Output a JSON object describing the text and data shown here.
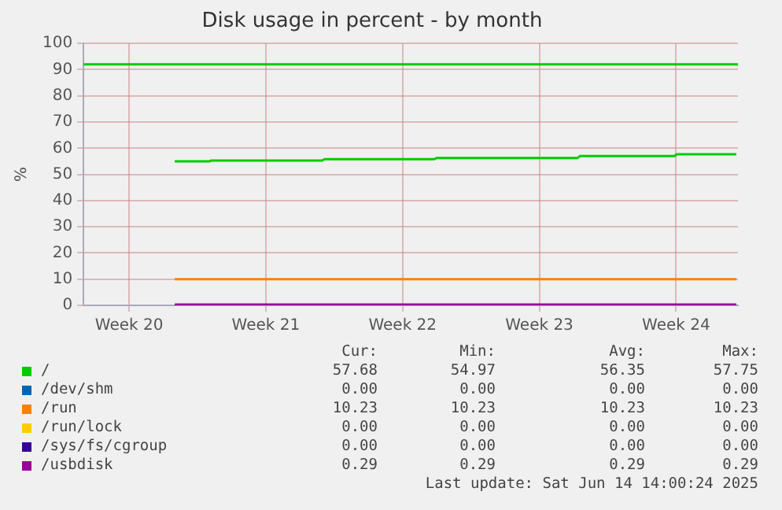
{
  "chart_data": {
    "type": "line",
    "title": "Disk usage in percent - by month",
    "ylabel": "%",
    "xlim": [
      "2025-05-12T04:00",
      "2025-06-14T16:00"
    ],
    "xticks": [
      {
        "value": "2025-05-14T12:00",
        "label": "Week 20"
      },
      {
        "value": "2025-05-21T12:00",
        "label": "Week 21"
      },
      {
        "value": "2025-05-28T12:00",
        "label": "Week 22"
      },
      {
        "value": "2025-06-04T12:00",
        "label": "Week 23"
      },
      {
        "value": "2025-06-11T12:00",
        "label": "Week 24"
      }
    ],
    "ylim": [
      0,
      100
    ],
    "yticks": [
      0,
      10,
      20,
      30,
      40,
      50,
      60,
      70,
      80,
      90,
      100
    ],
    "grid": true,
    "legend": "bottom",
    "marker": "none",
    "line_style": "solid",
    "series": [
      {
        "name": "/",
        "color": "#00cc00",
        "x": [
          "2025-05-16T20:00",
          "2025-05-18T15:00",
          "2025-05-18T17:00",
          "2025-05-24T09:00",
          "2025-05-24T12:00",
          "2025-05-30T03:00",
          "2025-05-30T06:00",
          "2025-06-06T11:00",
          "2025-06-06T14:00",
          "2025-06-11T10:00",
          "2025-06-11T13:00",
          "2025-06-14T14:00"
        ],
        "values": [
          55,
          55,
          55.3,
          55.3,
          55.8,
          55.8,
          56.3,
          56.3,
          57,
          57,
          57.7,
          57.7
        ]
      },
      {
        "name": "/dev/shm",
        "color": "#0066b3"
      },
      {
        "name": "/run",
        "color": "#ff8000",
        "x": [
          "2025-05-16T20:00",
          "2025-06-14T14:00"
        ],
        "values": [
          10,
          10
        ]
      },
      {
        "name": "/run/lock",
        "color": "#ffcc00"
      },
      {
        "name": "/sys/fs/cgroup",
        "color": "#330099"
      },
      {
        "name": "/usbdisk",
        "color": "#990099",
        "x": [
          "2025-05-16T20:00",
          "2025-06-14T14:00"
        ],
        "values": [
          0.3,
          0.3
        ]
      }
    ],
    "ref_lines": [
      {
        "axis": "y",
        "value": 92,
        "color": "#00cc00"
      }
    ],
    "annotations": [
      "Cur:",
      "Min:",
      "Avg:",
      "Max:",
      "57.68",
      "54.97",
      "56.35",
      "57.75",
      "0.00",
      "0.00",
      "0.00",
      "0.00",
      "10.23",
      "10.23",
      "10.23",
      "10.23",
      "0.00",
      "0.00",
      "0.00",
      "0.00",
      "0.00",
      "0.00",
      "0.00",
      "0.00",
      "0.29",
      "0.29",
      "0.29",
      "0.29",
      "Last update: Sat Jun 14 14:00:24 2025"
    ]
  }
}
